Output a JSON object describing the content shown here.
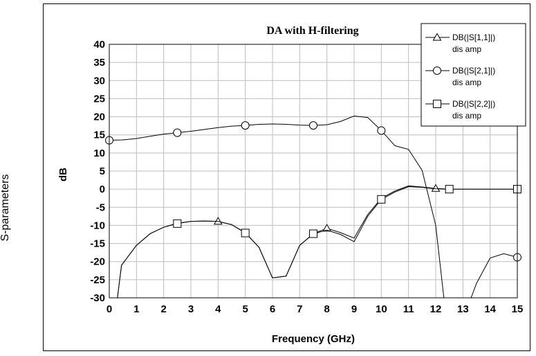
{
  "outer_label": "S-parameters",
  "chart_data": {
    "type": "line",
    "title": "DA with H-filtering",
    "xlabel": "Frequency (GHz)",
    "ylabel": "dB",
    "xlim": [
      0,
      15
    ],
    "ylim": [
      -30,
      40
    ],
    "x_ticks": [
      0,
      1,
      2,
      3,
      4,
      5,
      6,
      7,
      8,
      9,
      10,
      11,
      12,
      13,
      14,
      15
    ],
    "y_ticks": [
      40,
      35,
      30,
      25,
      20,
      15,
      10,
      5,
      0,
      -5,
      -10,
      -15,
      -20,
      -25,
      -30
    ],
    "grid": true,
    "legend_position": "top-right",
    "series": [
      {
        "name": "DB(|S[1,1]|)",
        "sub": "dis amp",
        "marker": "triangle",
        "x": [
          0.3,
          0.45,
          1,
          1.5,
          2,
          2.5,
          3,
          3.5,
          4,
          4.5,
          5,
          5.5,
          6,
          6.5,
          7,
          7.5,
          8,
          8.5,
          9,
          9.5,
          10,
          10.5,
          11,
          11.5,
          12,
          12.5,
          13,
          13.5,
          14,
          14.5,
          15
        ],
        "y": [
          -30,
          -21,
          -15.5,
          -12.3,
          -10.5,
          -9.4,
          -8.9,
          -8.8,
          -8.9,
          -9.8,
          -12,
          -16,
          -24.5,
          -24,
          -15.5,
          -12.3,
          -10.8,
          -12,
          -13.5,
          -7,
          -2.5,
          -0.5,
          0.9,
          0.6,
          0.2,
          0,
          0,
          0,
          0,
          0,
          0
        ],
        "markers_x": [
          4,
          8,
          12
        ]
      },
      {
        "name": "DB(|S[2,1]|)",
        "sub": "dis amp",
        "marker": "circle",
        "x": [
          0,
          0.5,
          1,
          1.5,
          2,
          2.5,
          3,
          3.5,
          4,
          4.5,
          5,
          5.5,
          6,
          6.5,
          7,
          7.5,
          8,
          8.5,
          9,
          9.5,
          10,
          10.5,
          11,
          11.5,
          12,
          12.3,
          13.3,
          13.5,
          14,
          14.5,
          15
        ],
        "y": [
          13.5,
          13.6,
          14,
          14.6,
          15.2,
          15.6,
          16,
          16.5,
          17,
          17.4,
          17.6,
          17.9,
          18,
          17.9,
          17.7,
          17.6,
          17.8,
          18.7,
          20.2,
          19.8,
          16.2,
          12,
          11,
          5.2,
          -10,
          -30,
          -30,
          -26,
          -19,
          -17.8,
          -18.8
        ],
        "markers_x": [
          0,
          2.5,
          5,
          7.5,
          10,
          15
        ]
      },
      {
        "name": "DB(|S[2,2]|)",
        "sub": "dis amp",
        "marker": "square",
        "x": [
          0.3,
          0.45,
          1,
          1.5,
          2,
          2.5,
          3,
          3.5,
          4,
          4.5,
          5,
          5.5,
          6,
          6.5,
          7,
          7.5,
          8,
          8.5,
          9,
          9.5,
          10,
          10.5,
          11,
          11.5,
          12,
          12.5,
          13,
          13.5,
          14,
          14.5,
          15
        ],
        "y": [
          -30,
          -21,
          -15.5,
          -12.3,
          -10.5,
          -9.5,
          -8.9,
          -8.8,
          -8.9,
          -9.8,
          -12.1,
          -16,
          -24.5,
          -24,
          -15.5,
          -12.3,
          -11.3,
          -12.5,
          -14.5,
          -7.5,
          -2.8,
          -0.8,
          0.7,
          0.5,
          0.1,
          0,
          0,
          0,
          0,
          0,
          0
        ],
        "markers_x": [
          2.5,
          5,
          7.5,
          10,
          12.5,
          15
        ]
      }
    ]
  }
}
